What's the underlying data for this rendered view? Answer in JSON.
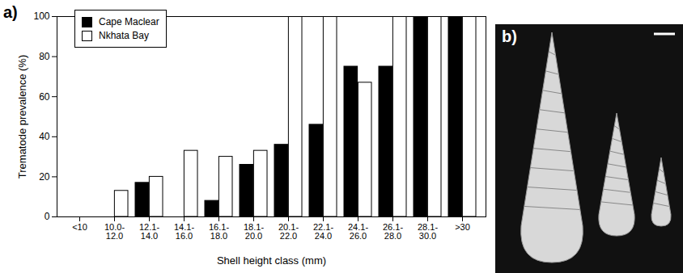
{
  "chart_data": {
    "type": "bar",
    "panel_label": "a)",
    "xlabel": "Shell height class (mm)",
    "ylabel": "Trematode prevalence (%)",
    "categories": [
      "<10",
      "10.0-12.0",
      "12.1-14.0",
      "14.1-16.0",
      "16.1-18.0",
      "18.1-20.0",
      "20.1-22.0",
      "22.1-24.0",
      "24.1-26.0",
      "26.1-28.0",
      "28.1-30.0",
      ">30"
    ],
    "series": [
      {
        "name": "Cape Maclear",
        "color": "#000000",
        "values": [
          0,
          0,
          17,
          0,
          8,
          26,
          36,
          46,
          75,
          75,
          100,
          100
        ]
      },
      {
        "name": "Nkhata Bay",
        "color": "#ffffff",
        "values": [
          0,
          13,
          20,
          33,
          30,
          33,
          100,
          100,
          67,
          100,
          100,
          100
        ]
      }
    ],
    "ylim": [
      0,
      100
    ],
    "yticks": [
      0,
      20,
      40,
      60,
      80,
      100
    ],
    "grid": false,
    "legend": "upper left"
  },
  "image_panel": {
    "label": "b)"
  }
}
